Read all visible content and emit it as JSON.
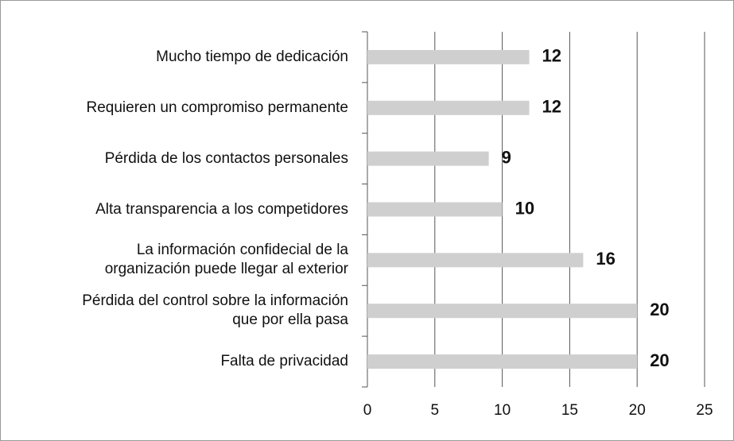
{
  "chart_data": {
    "type": "barh",
    "categories": [
      "Mucho tiempo de dedicación",
      "Requieren un compromiso permanente",
      "Pérdida de los contactos personales",
      "Alta transparencia a los competidores",
      "La información confidecial de la\norganización puede llegar al exterior",
      "Pérdida del control sobre la información\nque por ella pasa",
      "Falta de privacidad"
    ],
    "values": [
      12,
      12,
      9,
      10,
      16,
      20,
      20
    ],
    "color": "#cfcfcf",
    "xlim": [
      0,
      25
    ],
    "xticks": [
      0,
      5,
      10,
      15,
      20,
      25
    ],
    "grid": true
  }
}
